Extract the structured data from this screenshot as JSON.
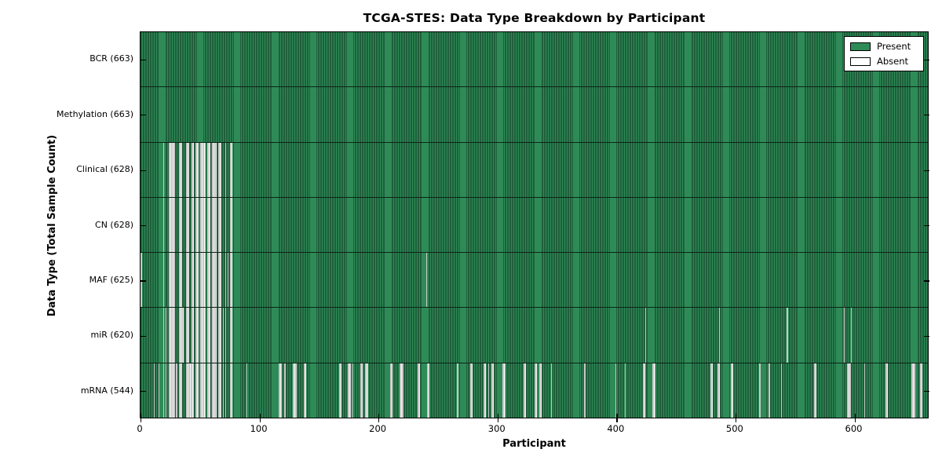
{
  "title": "TCGA-STES: Data Type Breakdown by Participant",
  "xlabel": "Participant",
  "ylabel": "Data Type (Total Sample Count)",
  "legend": {
    "present_label": "Present",
    "absent_label": "Absent"
  },
  "colors": {
    "present_fill": "#2e8b57",
    "present_edge": "#10331f",
    "absent_fill": "#f4f4f4",
    "absent_edge": "#9c9c9c",
    "background": "#ffffff",
    "axis": "#000000"
  },
  "chart_data": {
    "type": "heatmap",
    "title": "TCGA-STES: Data Type Breakdown by Participant",
    "xlabel": "Participant",
    "ylabel": "Data Type (Total Sample Count)",
    "legend_entries": [
      "Present",
      "Absent"
    ],
    "legend_position": "upper right",
    "x_range": [
      0,
      663
    ],
    "x_ticks": [
      0,
      100,
      200,
      300,
      400,
      500,
      600
    ],
    "rows": [
      {
        "name": "BCR",
        "label": "BCR (663)",
        "present_count": 663,
        "absent_count": 0,
        "absent_ranges": []
      },
      {
        "name": "Methylation",
        "label": "Methylation (663)",
        "present_count": 663,
        "absent_count": 0,
        "absent_ranges": []
      },
      {
        "name": "Clinical",
        "label": "Clinical (628)",
        "present_count": 628,
        "absent_count": 35,
        "absent_ranges": [
          [
            19,
            19
          ],
          [
            24,
            28
          ],
          [
            32,
            34
          ],
          [
            38,
            40
          ],
          [
            43,
            44
          ],
          [
            46,
            48
          ],
          [
            50,
            54
          ],
          [
            56,
            58
          ],
          [
            60,
            63
          ],
          [
            65,
            67
          ],
          [
            71,
            71
          ],
          [
            75,
            76
          ]
        ]
      },
      {
        "name": "CN",
        "label": "CN (628)",
        "present_count": 628,
        "absent_count": 35,
        "absent_ranges": [
          [
            19,
            19
          ],
          [
            24,
            28
          ],
          [
            32,
            34
          ],
          [
            38,
            40
          ],
          [
            43,
            44
          ],
          [
            46,
            48
          ],
          [
            50,
            54
          ],
          [
            56,
            58
          ],
          [
            60,
            63
          ],
          [
            65,
            67
          ],
          [
            71,
            71
          ],
          [
            75,
            76
          ]
        ]
      },
      {
        "name": "MAF",
        "label": "MAF (625)",
        "present_count": 625,
        "absent_count": 38,
        "absent_ranges": [
          [
            0,
            0
          ],
          [
            19,
            19
          ],
          [
            24,
            28
          ],
          [
            32,
            34
          ],
          [
            38,
            40
          ],
          [
            43,
            44
          ],
          [
            46,
            48
          ],
          [
            50,
            54
          ],
          [
            56,
            58
          ],
          [
            60,
            63
          ],
          [
            65,
            67
          ],
          [
            71,
            71
          ],
          [
            73,
            73
          ],
          [
            75,
            76
          ],
          [
            240,
            240
          ]
        ]
      },
      {
        "name": "miR",
        "label": "miR (620)",
        "present_count": 620,
        "absent_count": 43,
        "absent_ranges": [
          [
            19,
            19
          ],
          [
            21,
            21
          ],
          [
            24,
            28
          ],
          [
            32,
            35
          ],
          [
            38,
            40
          ],
          [
            43,
            44
          ],
          [
            46,
            48
          ],
          [
            50,
            54
          ],
          [
            56,
            58
          ],
          [
            60,
            63
          ],
          [
            65,
            67
          ],
          [
            69,
            69
          ],
          [
            71,
            71
          ],
          [
            75,
            76
          ],
          [
            424,
            424
          ],
          [
            486,
            486
          ],
          [
            543,
            543
          ],
          [
            591,
            591
          ],
          [
            597,
            597
          ]
        ]
      },
      {
        "name": "mRNA",
        "label": "mRNA (544)",
        "present_count": 544,
        "absent_count": 119,
        "absent_ranges": [
          [
            11,
            11
          ],
          [
            15,
            15
          ],
          [
            19,
            19
          ],
          [
            21,
            21
          ],
          [
            24,
            28
          ],
          [
            30,
            30
          ],
          [
            32,
            34
          ],
          [
            38,
            44
          ],
          [
            46,
            48
          ],
          [
            50,
            54
          ],
          [
            56,
            58
          ],
          [
            60,
            63
          ],
          [
            65,
            67
          ],
          [
            69,
            69
          ],
          [
            71,
            71
          ],
          [
            75,
            76
          ],
          [
            89,
            89
          ],
          [
            116,
            118
          ],
          [
            121,
            121
          ],
          [
            128,
            130
          ],
          [
            137,
            138
          ],
          [
            167,
            168
          ],
          [
            174,
            176
          ],
          [
            178,
            178
          ],
          [
            185,
            186
          ],
          [
            189,
            190
          ],
          [
            210,
            211
          ],
          [
            218,
            220
          ],
          [
            233,
            234
          ],
          [
            241,
            242
          ],
          [
            266,
            266
          ],
          [
            277,
            278
          ],
          [
            288,
            289
          ],
          [
            292,
            292
          ],
          [
            295,
            296
          ],
          [
            304,
            306
          ],
          [
            322,
            323
          ],
          [
            331,
            332
          ],
          [
            335,
            336
          ],
          [
            345,
            345
          ],
          [
            373,
            373
          ],
          [
            399,
            399
          ],
          [
            407,
            407
          ],
          [
            422,
            423
          ],
          [
            430,
            432
          ],
          [
            479,
            480
          ],
          [
            485,
            486
          ],
          [
            496,
            497
          ],
          [
            520,
            520
          ],
          [
            528,
            528
          ],
          [
            538,
            538
          ],
          [
            566,
            567
          ],
          [
            594,
            596
          ],
          [
            608,
            608
          ],
          [
            626,
            627
          ],
          [
            648,
            650
          ],
          [
            655,
            656
          ]
        ]
      }
    ]
  }
}
